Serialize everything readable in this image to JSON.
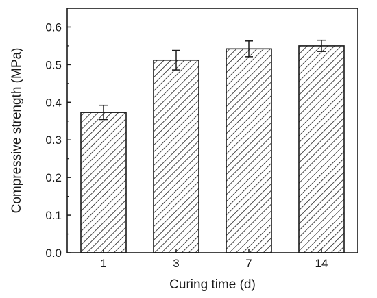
{
  "chart_data": {
    "type": "bar",
    "categories": [
      "1",
      "3",
      "7",
      "14"
    ],
    "values": [
      0.373,
      0.512,
      0.542,
      0.55
    ],
    "errors": [
      0.019,
      0.026,
      0.021,
      0.015
    ],
    "title": "",
    "xlabel": "Curing time (d)",
    "ylabel": "Compressive strength (MPa)",
    "ylim": [
      0.0,
      0.65
    ],
    "yticks": [
      "0.0",
      "0.1",
      "0.2",
      "0.3",
      "0.4",
      "0.5",
      "0.6"
    ],
    "bar_fill": "diagonal-hatch",
    "colors": {
      "bar_edge": "#1a1a1a",
      "hatch": "#1a1a1a",
      "axis": "#1a1a1a",
      "background": "#ffffff"
    },
    "grid": false,
    "legend": "none"
  }
}
